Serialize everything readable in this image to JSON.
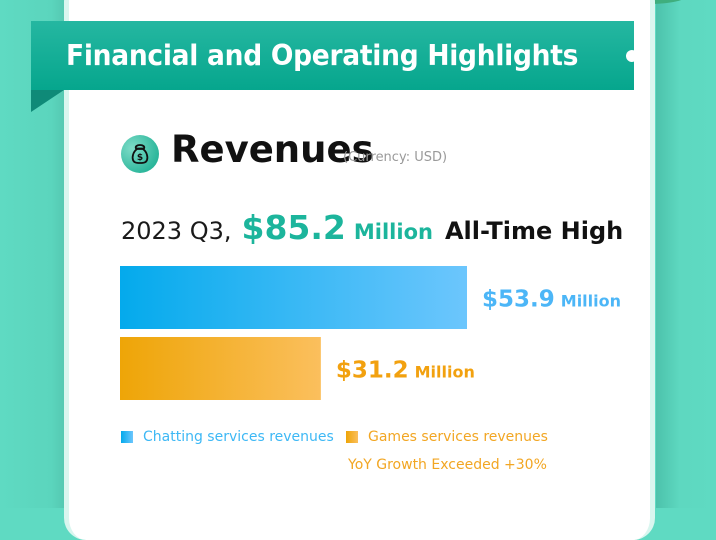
{
  "banner": {
    "title": "Financial and Operating Highlights"
  },
  "section": {
    "title": "Revenues",
    "currency_note": "(Currency: USD)",
    "icon": "money-bag-icon"
  },
  "headline": {
    "period": "2023 Q3,",
    "amount": "$85.2",
    "unit": "Million",
    "tag": "All-Time High"
  },
  "colors": {
    "brand": "#1cb59c",
    "chatting": "#3db8f5",
    "games": "#f2a623",
    "background": "#5fdac2"
  },
  "chart_data": {
    "type": "bar",
    "orientation": "horizontal",
    "title": "Revenues",
    "subtitle": "(Currency: USD)",
    "units": "Million USD",
    "categories": [
      "Chatting services revenues",
      "Games services revenues"
    ],
    "values": [
      53.9,
      31.2
    ],
    "total": 85.2,
    "series": [
      {
        "name": "Chatting services revenues",
        "value": 53.9,
        "label_amount": "$53.9",
        "label_unit": "Million",
        "color_start": "#04aaec",
        "color_end": "#6cc6fd"
      },
      {
        "name": "Games services revenues",
        "value": 31.2,
        "label_amount": "$31.2",
        "label_unit": "Million",
        "color_start": "#eea507",
        "color_end": "#fbbf5d"
      }
    ],
    "legend": [
      {
        "label": "Chatting services revenues",
        "color": "#3db8f5"
      },
      {
        "label": "Games services revenues",
        "color": "#f2a623"
      }
    ],
    "legend_position": "bottom",
    "annotation": "YoY Growth Exceeded +30%",
    "xlabel": "",
    "ylabel": "",
    "grid": false
  }
}
